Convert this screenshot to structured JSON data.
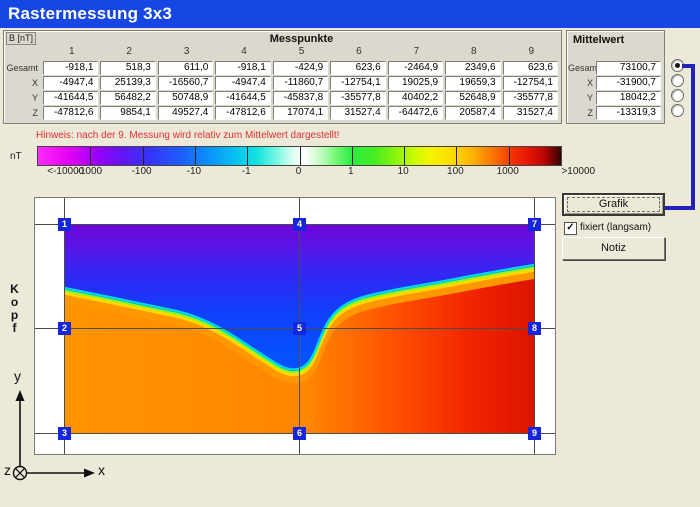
{
  "title": "Rastermessung 3x3",
  "table": {
    "unit_label": "B [nT]",
    "header": "Messpunkte",
    "columns": [
      "1",
      "2",
      "3",
      "4",
      "5",
      "6",
      "7",
      "8",
      "9"
    ],
    "rows": [
      {
        "label": "Gesamt",
        "values": [
          "-918,1",
          "518,3",
          "611,0",
          "-918,1",
          "-424,9",
          "623,6",
          "-2464,9",
          "2349,6",
          "623,6"
        ]
      },
      {
        "label": "X",
        "values": [
          "-4947,4",
          "25139,3",
          "-16560,7",
          "-4947,4",
          "-11860,7",
          "-12754,1",
          "19025,9",
          "19659,3",
          "-12754,1"
        ]
      },
      {
        "label": "Y",
        "values": [
          "-41644,5",
          "56482,2",
          "50748,9",
          "-41644,5",
          "-45837,8",
          "-35577,8",
          "40402,2",
          "52648,9",
          "-35577,8"
        ]
      },
      {
        "label": "Z",
        "values": [
          "-47812,6",
          "9854,1",
          "49527,4",
          "-47812,6",
          "17074,1",
          "31527,4",
          "-64472,6",
          "20587,4",
          "31527,4"
        ]
      }
    ]
  },
  "mittelwert": {
    "title": "Mittelwert",
    "rows": [
      {
        "label": "Gesamt",
        "value": "73100,7",
        "selected": true
      },
      {
        "label": "X",
        "value": "-31900,7",
        "selected": false
      },
      {
        "label": "Y",
        "value": "18042,2",
        "selected": false
      },
      {
        "label": "Z",
        "value": "-13319,3",
        "selected": false
      }
    ]
  },
  "hint": "Hinweis: nach der 9. Messung wird relativ zum Mittelwert dargestellt!",
  "colorbar": {
    "unit": "nT",
    "labels": [
      "<-10000",
      "-1000",
      "-100",
      "-10",
      "-1",
      "0",
      "1",
      "10",
      "100",
      "1000",
      ">10000"
    ]
  },
  "plot": {
    "markers": [
      "1",
      "2",
      "3",
      "4",
      "5",
      "6",
      "7",
      "8",
      "9"
    ],
    "side_label": "Kopf",
    "axis_x": "x",
    "axis_y": "y",
    "axis_z": "z"
  },
  "sidebar": {
    "grafik_label": "Grafik",
    "checkbox_label": "fixiert (langsam)",
    "checkbox_checked": true,
    "notiz_label": "Notiz"
  },
  "colors": {
    "titlebar": "#1747e2",
    "marker_blue": "#1626dc",
    "connector_blue": "#2222bb",
    "hint_red": "#e03030"
  }
}
